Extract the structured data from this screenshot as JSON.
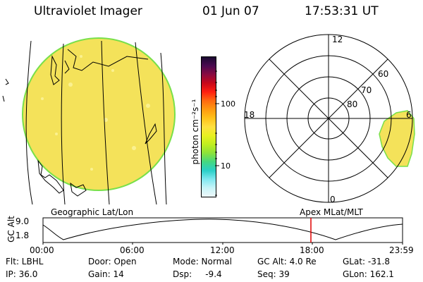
{
  "header": {
    "instrument": "Ultraviolet Imager",
    "date": "01 Jun 07",
    "time": "17:53:31 UT"
  },
  "colorbar": {
    "label": "photon cm⁻²s⁻¹",
    "ticks": [
      "100",
      "10"
    ],
    "colors": [
      "#1a0a30",
      "#4a0a50",
      "#8a0a40",
      "#c8081a",
      "#ff2010",
      "#ff6a10",
      "#ff9a10",
      "#ffc21a",
      "#ffe040",
      "#e8f020",
      "#c0ee20",
      "#8ce23a",
      "#44d880",
      "#2ad0c8",
      "#80e8f0",
      "#c8f4f8",
      "#eef8fa"
    ]
  },
  "globe": {
    "fill_color": "#f4e25a",
    "limb_color": "#78e04a",
    "caption": "Geographic Lat/Lon"
  },
  "polar_plot": {
    "labels": [
      "12",
      "18",
      "6",
      "0"
    ],
    "lat_labels": [
      "60",
      "70",
      "80"
    ],
    "caption": "Apex  MLat/MLT"
  },
  "orbit": {
    "ylabel": "GC Alt",
    "yticks": [
      "9.0",
      "1.8"
    ],
    "xticks": [
      "00:00",
      "06:00",
      "12:00",
      "18:00",
      "23:59"
    ],
    "marker_color": "#e00000"
  },
  "status": {
    "filter": "Flt: LBHL",
    "ip": "IP: 36.0",
    "door": "Door: Open",
    "gain": "Gain: 14",
    "mode": "Mode: Normal",
    "dsp": "Dsp:     -9.4",
    "gc_alt": "GC Alt: 4.0 Re",
    "seq": "Seq: 39",
    "glat": "GLat: -31.8",
    "glon": "GLon: 162.1"
  }
}
